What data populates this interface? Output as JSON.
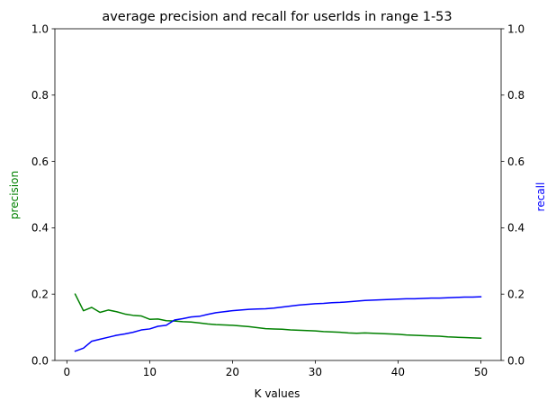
{
  "chart_data": {
    "type": "line",
    "title": "average precision and recall for userIds in range 1-53",
    "xlabel": "K values",
    "ylabel_left": "precision",
    "ylabel_right": "recall",
    "xlim": [
      -1.45,
      52.45
    ],
    "ylim_left": [
      0,
      1
    ],
    "ylim_right": [
      0,
      1
    ],
    "x_ticks": [
      0,
      10,
      20,
      30,
      40,
      50
    ],
    "y_ticks": [
      0.0,
      0.2,
      0.4,
      0.6,
      0.8,
      1.0
    ],
    "y_tick_labels": [
      "0.0",
      "0.2",
      "0.4",
      "0.6",
      "0.8",
      "1.0"
    ],
    "grid": false,
    "x": [
      1,
      2,
      3,
      4,
      5,
      6,
      7,
      8,
      9,
      10,
      11,
      12,
      13,
      14,
      15,
      16,
      17,
      18,
      19,
      20,
      21,
      22,
      23,
      24,
      25,
      26,
      27,
      28,
      29,
      30,
      31,
      32,
      33,
      34,
      35,
      36,
      37,
      38,
      39,
      40,
      41,
      42,
      43,
      44,
      45,
      46,
      47,
      48,
      49,
      50
    ],
    "series": [
      {
        "name": "precision",
        "axis": "left",
        "color": "#008000",
        "values": [
          0.2,
          0.15,
          0.16,
          0.145,
          0.152,
          0.147,
          0.14,
          0.136,
          0.134,
          0.124,
          0.125,
          0.12,
          0.119,
          0.117,
          0.116,
          0.113,
          0.11,
          0.108,
          0.107,
          0.106,
          0.104,
          0.102,
          0.099,
          0.096,
          0.095,
          0.094,
          0.092,
          0.091,
          0.09,
          0.089,
          0.087,
          0.086,
          0.085,
          0.083,
          0.082,
          0.083,
          0.082,
          0.081,
          0.08,
          0.079,
          0.077,
          0.076,
          0.075,
          0.074,
          0.073,
          0.071,
          0.07,
          0.069,
          0.068,
          0.067
        ]
      },
      {
        "name": "recall",
        "axis": "right",
        "color": "#0000ff",
        "values": [
          0.028,
          0.037,
          0.058,
          0.064,
          0.07,
          0.076,
          0.08,
          0.085,
          0.092,
          0.095,
          0.103,
          0.106,
          0.122,
          0.126,
          0.131,
          0.133,
          0.139,
          0.144,
          0.147,
          0.15,
          0.152,
          0.154,
          0.155,
          0.156,
          0.158,
          0.161,
          0.164,
          0.167,
          0.169,
          0.171,
          0.172,
          0.174,
          0.175,
          0.177,
          0.179,
          0.181,
          0.182,
          0.183,
          0.184,
          0.185,
          0.186,
          0.186,
          0.187,
          0.188,
          0.188,
          0.189,
          0.19,
          0.191,
          0.191,
          0.192
        ]
      }
    ]
  }
}
